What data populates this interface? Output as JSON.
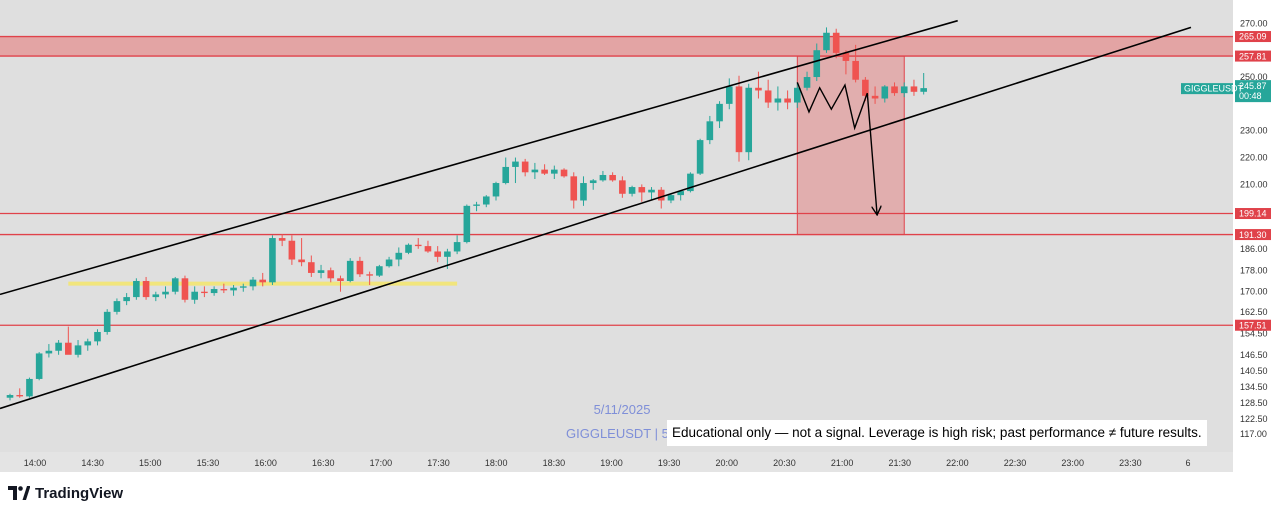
{
  "chart_data": {
    "type": "candlestick",
    "symbol": "GIGGLEUSDT",
    "watermark": {
      "date": "5/11/2025",
      "symbol_line": "GIGGLEUSDT | 5"
    },
    "x_ticks": [
      "14:00",
      "14:30",
      "15:00",
      "15:30",
      "16:00",
      "16:30",
      "17:00",
      "17:30",
      "18:00",
      "18:30",
      "19:00",
      "19:30",
      "20:00",
      "20:30",
      "21:00",
      "21:30",
      "22:00",
      "22:30",
      "23:00",
      "23:30",
      "6"
    ],
    "y_ticks": [
      "117.00",
      "122.50",
      "128.50",
      "134.50",
      "140.50",
      "146.50",
      "154.50",
      "162.50",
      "170.00",
      "178.00",
      "186.00",
      "210.00",
      "220.00",
      "230.00",
      "250.00",
      "270.00"
    ],
    "y_tick_values": [
      117.0,
      122.5,
      128.5,
      134.5,
      140.5,
      146.5,
      154.5,
      162.5,
      170.0,
      178.0,
      186.0,
      210.0,
      220.0,
      230.0,
      250.0,
      270.0
    ],
    "ylim": [
      114,
      272
    ],
    "horizontal_levels": [
      {
        "label": "265.09",
        "value": 265.09,
        "color": "#e0424a"
      },
      {
        "label": "257.81",
        "value": 257.81,
        "color": "#e0424a"
      },
      {
        "label": "199.14",
        "value": 199.14,
        "color": "#e0424a"
      },
      {
        "label": "191.30",
        "value": 191.3,
        "color": "#e0424a"
      },
      {
        "label": "157.51",
        "value": 157.51,
        "color": "#e0424a"
      }
    ],
    "resistance_zone": [
      257.81,
      265.09
    ],
    "target_zone": {
      "top": 257.81,
      "bottom": 191.3,
      "start_bar": 81,
      "end_bar": 92
    },
    "current_price": {
      "label": "245.87",
      "countdown": "00:48",
      "value": 245.87,
      "color": "#26a69a"
    },
    "series_label": "GIGGLEUSDT",
    "colors": {
      "up": "#26a69a",
      "down": "#ef5350",
      "background": "#dfdfdf",
      "level": "#e0424a",
      "zone": "#e57373",
      "channel": "#000000",
      "highlight": "#f5e663"
    },
    "candles": [
      [
        130.5,
        132,
        129.5,
        131.5
      ],
      [
        131.5,
        134,
        130.5,
        131
      ],
      [
        131,
        138,
        130.5,
        137.5
      ],
      [
        137.5,
        147.5,
        137,
        147
      ],
      [
        147,
        150.5,
        145.5,
        148
      ],
      [
        148,
        152,
        146.5,
        151
      ],
      [
        151,
        157,
        148,
        146.5
      ],
      [
        146.5,
        152,
        145.5,
        150
      ],
      [
        150,
        152.5,
        148,
        151.5
      ],
      [
        151.5,
        156,
        150,
        155
      ],
      [
        155,
        163.5,
        154,
        162.5
      ],
      [
        162.5,
        167.5,
        161.5,
        166.5
      ],
      [
        166.5,
        169.5,
        165,
        168
      ],
      [
        168,
        175,
        167,
        174
      ],
      [
        174,
        175.5,
        167,
        168
      ],
      [
        168,
        170,
        166.5,
        169
      ],
      [
        169,
        172,
        167.5,
        170
      ],
      [
        170,
        175.5,
        169,
        175
      ],
      [
        175,
        176,
        166,
        167
      ],
      [
        167,
        172,
        165.5,
        170
      ],
      [
        170,
        172,
        168,
        169.5
      ],
      [
        169.5,
        172,
        168.5,
        171
      ],
      [
        171,
        173,
        169.5,
        170.5
      ],
      [
        170.5,
        172.5,
        168.5,
        171.5
      ],
      [
        171.5,
        173,
        170,
        172
      ],
      [
        172,
        175.5,
        170.5,
        174.5
      ],
      [
        174.5,
        177,
        172,
        173.5
      ],
      [
        173.5,
        191,
        172.5,
        190
      ],
      [
        190,
        191.5,
        187,
        189
      ],
      [
        189,
        191,
        180,
        182
      ],
      [
        182,
        190,
        179.5,
        181
      ],
      [
        181,
        183.5,
        175.5,
        177
      ],
      [
        177,
        180,
        175,
        178
      ],
      [
        178,
        179,
        173.5,
        175
      ],
      [
        175,
        176,
        170,
        174
      ],
      [
        174,
        182.5,
        173.5,
        181.5
      ],
      [
        181.5,
        183,
        175.5,
        176.5
      ],
      [
        176.5,
        177.5,
        172.5,
        176
      ],
      [
        176,
        180,
        175.5,
        179.5
      ],
      [
        179.5,
        183,
        179,
        182
      ],
      [
        182,
        186.5,
        179.5,
        184.5
      ],
      [
        184.5,
        188,
        184,
        187.5
      ],
      [
        187.5,
        190,
        186,
        187
      ],
      [
        187,
        189,
        184.5,
        185
      ],
      [
        185,
        187,
        181,
        183
      ],
      [
        183,
        186,
        178.5,
        185
      ],
      [
        185,
        191,
        184,
        188.5
      ],
      [
        188.5,
        202.5,
        188,
        202
      ],
      [
        202,
        203.5,
        200,
        202.5
      ],
      [
        202.5,
        206,
        201.5,
        205.5
      ],
      [
        205.5,
        211,
        204,
        210.5
      ],
      [
        210.5,
        220,
        210,
        216.5
      ],
      [
        216.5,
        220,
        210.5,
        218.5
      ],
      [
        218.5,
        219.5,
        213,
        214.5
      ],
      [
        214.5,
        218,
        212,
        215.5
      ],
      [
        215.5,
        217.5,
        213.5,
        214
      ],
      [
        214,
        217,
        212,
        215.5
      ],
      [
        215.5,
        216,
        212.5,
        213
      ],
      [
        213,
        214.5,
        201,
        204
      ],
      [
        204,
        213,
        202,
        210.5
      ],
      [
        210.5,
        212,
        208,
        211.5
      ],
      [
        211.5,
        215,
        211,
        213.5
      ],
      [
        213.5,
        214.5,
        211,
        211.5
      ],
      [
        211.5,
        213,
        205,
        206.5
      ],
      [
        206.5,
        209.5,
        205.5,
        209
      ],
      [
        209,
        210,
        203.5,
        207
      ],
      [
        207,
        209,
        204,
        208
      ],
      [
        208,
        209,
        201,
        204
      ],
      [
        204,
        206.5,
        203,
        206
      ],
      [
        206,
        207,
        204,
        207.5
      ],
      [
        207.5,
        214.5,
        207,
        214
      ],
      [
        214,
        227,
        213.5,
        226.5
      ],
      [
        226.5,
        235.5,
        225,
        233.5
      ],
      [
        233.5,
        241,
        231,
        240
      ],
      [
        240,
        249.5,
        238,
        246.5
      ],
      [
        246.5,
        250.5,
        218.5,
        222
      ],
      [
        222,
        247.5,
        219,
        246
      ],
      [
        246,
        252,
        242,
        245
      ],
      [
        245,
        249,
        238.5,
        240.5
      ],
      [
        240.5,
        246.5,
        237.5,
        242
      ],
      [
        242,
        245,
        238,
        240.5
      ],
      [
        240.5,
        248,
        238.5,
        246
      ],
      [
        246,
        252,
        245,
        250
      ],
      [
        250,
        262.5,
        248.5,
        260
      ],
      [
        260,
        268.5,
        259,
        266.5
      ],
      [
        266.5,
        268,
        257,
        259
      ],
      [
        259,
        260,
        251,
        256
      ],
      [
        256,
        262,
        248,
        249
      ],
      [
        249,
        250,
        241,
        243
      ],
      [
        243,
        246.5,
        240,
        242
      ],
      [
        242,
        247,
        240.5,
        246.5
      ],
      [
        246.5,
        248,
        243,
        244
      ],
      [
        244,
        248,
        242.5,
        246.5
      ],
      [
        246.5,
        249,
        243,
        244.5
      ],
      [
        244.5,
        251.5,
        243.5,
        245.87
      ]
    ],
    "projection_path": [
      [
        248,
        0
      ],
      [
        237,
        1.2
      ],
      [
        246,
        2.3
      ],
      [
        238,
        3.5
      ],
      [
        247,
        4.9
      ],
      [
        231,
        5.9
      ],
      [
        244,
        7.2
      ],
      [
        199,
        8.2
      ]
    ]
  },
  "ui": {
    "disclaimer": "Educational only — not a signal. Leverage is high risk; past performance ≠ future results.",
    "brand": "TradingView"
  }
}
